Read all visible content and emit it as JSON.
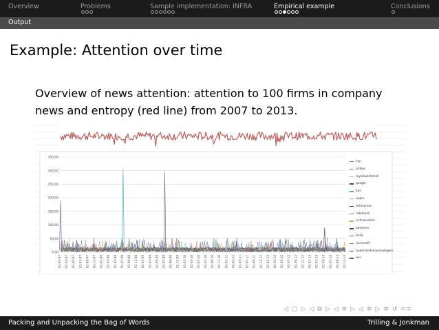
{
  "nav": {
    "sections": [
      {
        "label": "Overview",
        "dots": 0,
        "filled": -1,
        "active": false
      },
      {
        "label": "Problems",
        "dots": 3,
        "filled": -1,
        "active": false
      },
      {
        "label": "Sample implementation: INFRA",
        "dots": 6,
        "filled": -1,
        "active": false
      },
      {
        "label": "Empirical example",
        "dots": 6,
        "filled": 2,
        "active": true
      },
      {
        "label": "Conclusions",
        "dots": 1,
        "filled": -1,
        "active": false
      }
    ],
    "subsection": "Output"
  },
  "slide": {
    "title": "Example: Attention over time",
    "body": "Overview of news attention: attention to 100 firms in company news and entropy (red line) from 2007 to 2013."
  },
  "footer": {
    "left": "Packing and Unpacking the Bag of Words",
    "right": "Trilling & Jonkman"
  },
  "beamer_nav": {
    "symbols": [
      "◁",
      "□",
      "▷",
      "◁",
      "⧉",
      "▷",
      "◁",
      "≡",
      "▷",
      "◁",
      "≡",
      "▷",
      "≡",
      "↺",
      "⊂⊃"
    ]
  },
  "chart_data": [
    {
      "type": "line",
      "series": [
        {
          "name": "",
          "color": "#c0504d",
          "description_values": [
            0.72,
            0.62,
            0.75,
            0.55,
            0.8,
            0.68,
            0.74,
            0.6,
            0.78,
            0.66,
            0.71,
            0.52,
            0.79,
            0.7,
            0.65,
            0.74
          ]
        }
      ]
    },
    {
      "type": "line",
      "ylim": [
        0,
        350
      ],
      "y_ticks": [
        "0,00",
        "50,00",
        "100,00",
        "150,00",
        "200,00",
        "250,00",
        "300,00",
        "350,00"
      ],
      "x_ticks": [
        "01-01-07",
        "01-03-07",
        "01-05-07",
        "01-07-07",
        "01-09-07",
        "01-11-07",
        "01-01-08",
        "01-03-08",
        "01-05-08",
        "01-07-08",
        "01-09-08",
        "01-11-08",
        "01-01-09",
        "01-03-09",
        "01-05-09",
        "01-07-09",
        "01-09-09",
        "01-11-09",
        "01-01-10",
        "01-03-10",
        "01-05-10",
        "01-07-10",
        "01-09-10",
        "01-11-10",
        "01-01-11",
        "01-03-11",
        "01-05-11",
        "01-07-11",
        "01-09-11",
        "01-11-11",
        "01-01-12",
        "01-03-12",
        "01-05-12",
        "01-07-12",
        "01-09-12",
        "01-11-12",
        "01-01-13",
        "01-03-13",
        "01-05-13",
        "01-07-13",
        "01-09-13",
        "01-11-13"
      ],
      "legend": [
        {
          "name": "ing",
          "color": "#4f81bd"
        },
        {
          "name": "philips",
          "color": "#8064a2"
        },
        {
          "name": "royaldutchshell",
          "color": "#c0c0c0"
        },
        {
          "name": "google",
          "color": "#4b3b6b"
        },
        {
          "name": "kpn",
          "color": "#4bacc6"
        },
        {
          "name": "apple",
          "color": "#f79646"
        },
        {
          "name": "tntexpress",
          "color": "#1f2f5f"
        },
        {
          "name": "rabobank",
          "color": "#7f7f7f"
        },
        {
          "name": "airfranceklm",
          "color": "#9bbb59"
        },
        {
          "name": "abnamro",
          "color": "#2c4d75"
        },
        {
          "name": "fortis",
          "color": "#31859c"
        },
        {
          "name": "microsoft",
          "color": "#e46c0a"
        },
        {
          "name": "nederlandsespoorwegen",
          "color": "#3f3f3f"
        },
        {
          "name": "sns",
          "color": "#5f497a"
        }
      ],
      "peaks": [
        {
          "x": "01-01-07",
          "y": 190,
          "series": "philips"
        },
        {
          "x": "01-07-08",
          "y": 305,
          "series": "kpn"
        },
        {
          "x": "01-07-09",
          "y": 295,
          "series": "philips"
        },
        {
          "x": "01-05-13",
          "y": 90,
          "series": "sns"
        }
      ]
    }
  ]
}
